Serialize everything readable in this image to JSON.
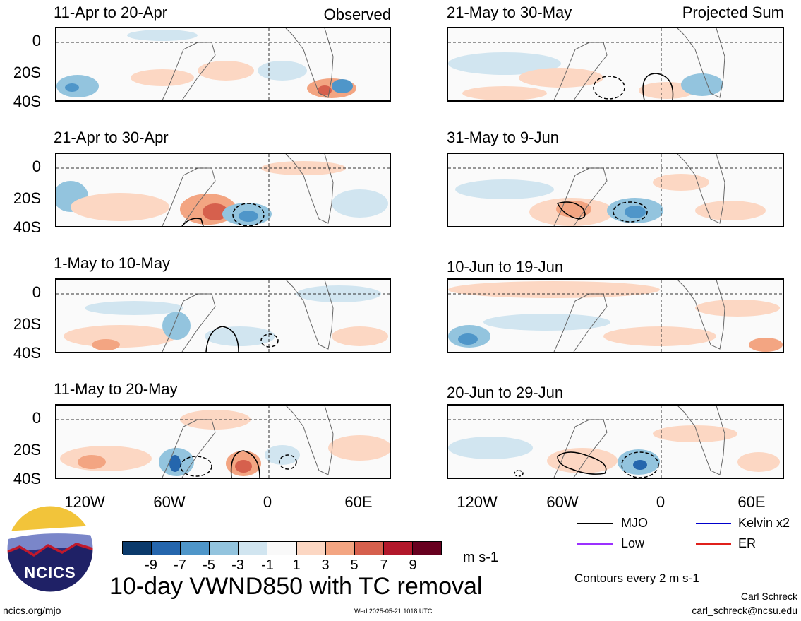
{
  "panels_left": [
    {
      "title": "11-Apr to 20-Apr",
      "label": "Observed"
    },
    {
      "title": "21-Apr to 30-Apr",
      "label": ""
    },
    {
      "title": "1-May to 10-May",
      "label": ""
    },
    {
      "title": "11-May to 20-May",
      "label": ""
    }
  ],
  "panels_right": [
    {
      "title": "21-May to 30-May",
      "label": "Projected Sum"
    },
    {
      "title": "31-May to 9-Jun",
      "label": ""
    },
    {
      "title": "10-Jun to 19-Jun",
      "label": ""
    },
    {
      "title": "20-Jun to 29-Jun",
      "label": ""
    }
  ],
  "lat_labels": [
    "0",
    "20S",
    "40S"
  ],
  "lon_labels": [
    "120W",
    "60W",
    "0",
    "60E"
  ],
  "colorbar": {
    "colors": [
      "#0b3a6b",
      "#2566ad",
      "#4f96c9",
      "#93c4de",
      "#d1e5f0",
      "#f9f9f9",
      "#fcd7c3",
      "#f3a582",
      "#d6604d",
      "#b2182b",
      "#67001f"
    ],
    "ticks": [
      "-9",
      "-7",
      "-5",
      "-3",
      "-1",
      "1",
      "3",
      "5",
      "7",
      "9"
    ],
    "units": "m s-1"
  },
  "legend": {
    "items": [
      {
        "label": "MJO",
        "color": "#000000"
      },
      {
        "label": "Kelvin x2",
        "color": "#0000cc"
      },
      {
        "label": "Low",
        "color": "#9b30ff"
      },
      {
        "label": "ER",
        "color": "#e0201b"
      }
    ],
    "contours_note": "Contours every 2 m s-1"
  },
  "main_title": "10-day VWND850 with TC removal",
  "logo_text": "NCICS",
  "footer": {
    "url": "ncics.org/mjo",
    "timestamp": "Wed 2025-05-21 1018 UTC",
    "author": "Carl Schreck",
    "email": "carl_schreck@ncsu.edu"
  }
}
